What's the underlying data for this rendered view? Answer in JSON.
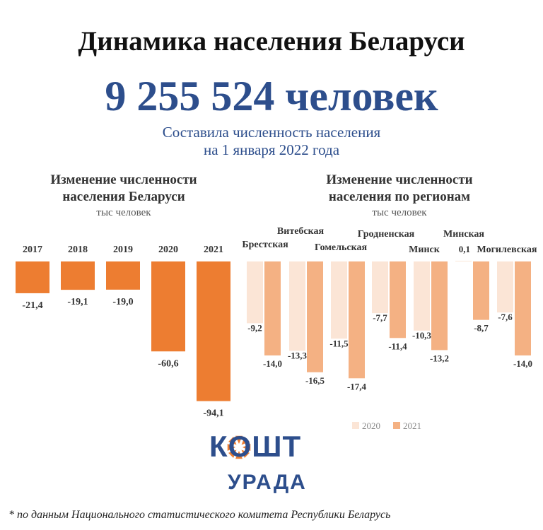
{
  "header": {
    "title": "Динамика населения Беларуси",
    "population": "9 255 524 человек",
    "subtitle_line1": "Составила численность населения",
    "subtitle_line2": "на 1 января 2022 года"
  },
  "chart_data": [
    {
      "type": "bar",
      "title_line1": "Изменение численности",
      "title_line2": "населения Беларуси",
      "unit": "тыс человек",
      "categories": [
        "2017",
        "2018",
        "2019",
        "2020",
        "2021"
      ],
      "values": [
        -21.4,
        -19.1,
        -19.0,
        -60.6,
        -94.1
      ],
      "value_labels": [
        "-21,4",
        "-19,1",
        "-19,0",
        "-60,6",
        "-94,1"
      ],
      "color": "#ed7d31"
    },
    {
      "type": "bar",
      "title_line1": "Изменение численности",
      "title_line2": "населения по регионам",
      "unit": "тыс человек",
      "categories": [
        "Брестская",
        "Витебская",
        "Гомельская",
        "Гродненская",
        "Минск",
        "Минская",
        "Могилевская"
      ],
      "series": [
        {
          "name": "2020",
          "color": "#fbe5d6",
          "values": [
            -9.2,
            -13.3,
            -11.5,
            -7.7,
            -10.3,
            0.1,
            -7.6
          ],
          "value_labels": [
            "-9,2",
            "-13,3",
            "-11,5",
            "-7,7",
            "-10,3",
            "0,1",
            "-7,6"
          ]
        },
        {
          "name": "2021",
          "color": "#f4b183",
          "values": [
            -14.0,
            -16.5,
            -17.4,
            -11.4,
            -13.2,
            -8.7,
            -14.0
          ],
          "value_labels": [
            "-14,0",
            "-16,5",
            "-17,4",
            "-11,4",
            "-13,2",
            "-8,7",
            "-14,0"
          ]
        }
      ],
      "legend_position": "bottom-right"
    }
  ],
  "logo": {
    "top": "КОШТ",
    "bottom": "УРАДА"
  },
  "footnote": "* по данным Национального статистического комитета Республики Беларусь"
}
